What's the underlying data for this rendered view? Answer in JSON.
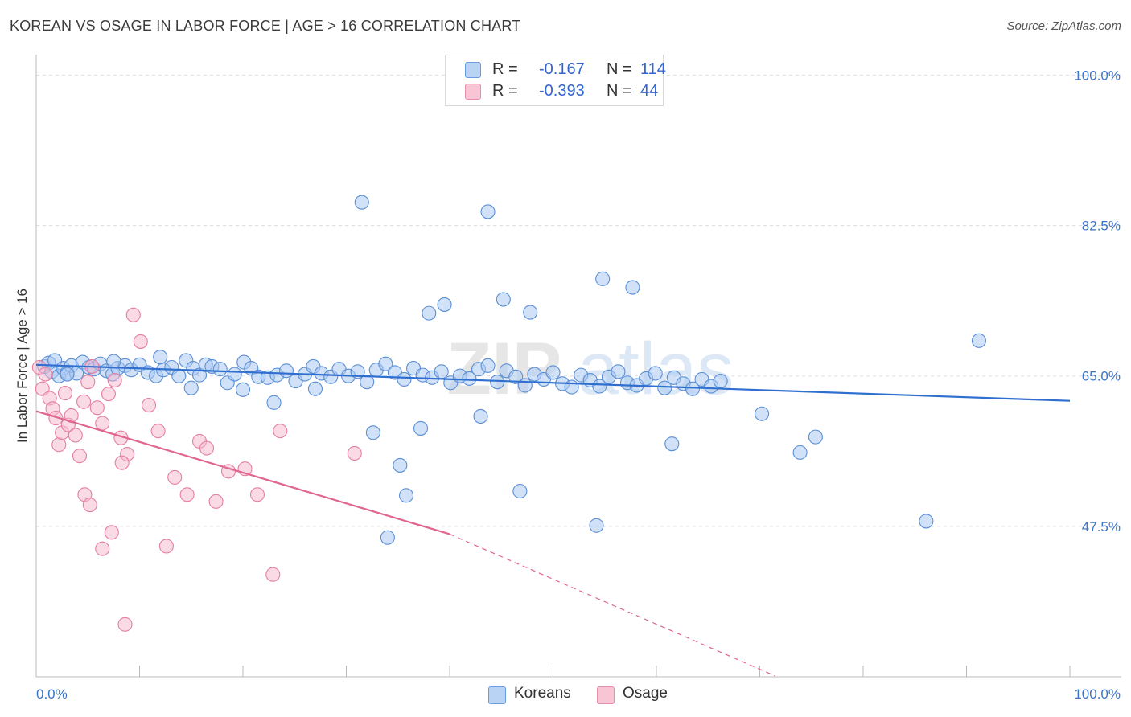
{
  "title": "KOREAN VS OSAGE IN LABOR FORCE | AGE > 16 CORRELATION CHART",
  "source": "Source: ZipAtlas.com",
  "watermark": "ZIPatlas",
  "colors": {
    "koreans_fill": "#a9c8f2",
    "koreans_stroke": "#5b8fd6",
    "koreans_line": "#2f6fcf",
    "osage_fill": "#f6b8cb",
    "osage_stroke": "#e47fa0",
    "osage_line": "#e06690",
    "tick_label": "#3b74c8",
    "grid": "#dddddd"
  },
  "legend_top": {
    "rows": [
      {
        "r_label": "R =",
        "r_value": "-0.167",
        "n_label": "N =",
        "n_value": "114"
      },
      {
        "r_label": "R =",
        "r_value": "-0.393",
        "n_label": "N =",
        "n_value": "44"
      }
    ]
  },
  "legend_bottom": {
    "items": [
      "Koreans",
      "Osage"
    ]
  },
  "chart_data": {
    "type": "scatter",
    "xlabel": "",
    "ylabel": "In Labor Force | Age > 16",
    "xlim": [
      0,
      100
    ],
    "ylim": [
      30,
      102
    ],
    "x_tick_labels": [
      "0.0%",
      "100.0%"
    ],
    "y_ticks": [
      47.5,
      65.0,
      82.5,
      100.0
    ],
    "y_tick_labels": [
      "47.5%",
      "65.0%",
      "82.5%",
      "100.0%"
    ],
    "grid": true,
    "legend_position": "top-center",
    "series": [
      {
        "name": "Koreans",
        "r": -0.167,
        "n": 114,
        "trend": {
          "x": [
            0,
            100
          ],
          "y": [
            66.3,
            62.1
          ]
        },
        "points": [
          [
            0.8,
            66.1
          ],
          [
            1.2,
            66.5
          ],
          [
            1.5,
            65.5
          ],
          [
            1.8,
            66.8
          ],
          [
            2.2,
            65.0
          ],
          [
            2.6,
            65.9
          ],
          [
            3.0,
            65.4
          ],
          [
            3.4,
            66.2
          ],
          [
            3.9,
            65.3
          ],
          [
            4.5,
            66.6
          ],
          [
            5.1,
            66.0
          ],
          [
            5.6,
            65.8
          ],
          [
            6.2,
            66.4
          ],
          [
            6.8,
            65.6
          ],
          [
            7.4,
            65.2
          ],
          [
            7.9,
            65.9
          ],
          [
            8.6,
            66.2
          ],
          [
            9.2,
            65.7
          ],
          [
            10.0,
            66.3
          ],
          [
            10.8,
            65.4
          ],
          [
            11.6,
            65.0
          ],
          [
            12.3,
            65.7
          ],
          [
            13.1,
            66.0
          ],
          [
            13.8,
            65.0
          ],
          [
            14.5,
            66.8
          ],
          [
            15.2,
            65.9
          ],
          [
            15.8,
            65.1
          ],
          [
            16.4,
            66.3
          ],
          [
            17.0,
            66.1
          ],
          [
            17.8,
            65.8
          ],
          [
            18.5,
            64.2
          ],
          [
            19.2,
            65.2
          ],
          [
            20.1,
            66.6
          ],
          [
            20.8,
            65.9
          ],
          [
            21.5,
            64.9
          ],
          [
            22.4,
            64.8
          ],
          [
            23.3,
            65.1
          ],
          [
            24.2,
            65.6
          ],
          [
            25.1,
            64.4
          ],
          [
            26.0,
            65.2
          ],
          [
            26.8,
            66.1
          ],
          [
            27.6,
            65.3
          ],
          [
            28.5,
            64.9
          ],
          [
            29.3,
            65.8
          ],
          [
            30.2,
            65.0
          ],
          [
            31.1,
            65.5
          ],
          [
            32.0,
            64.3
          ],
          [
            32.9,
            65.7
          ],
          [
            33.8,
            66.4
          ],
          [
            34.7,
            65.4
          ],
          [
            35.6,
            64.6
          ],
          [
            36.5,
            65.9
          ],
          [
            37.4,
            65.1
          ],
          [
            38.3,
            64.8
          ],
          [
            39.2,
            65.5
          ],
          [
            40.1,
            64.2
          ],
          [
            41.0,
            65.0
          ],
          [
            41.9,
            64.7
          ],
          [
            42.8,
            65.8
          ],
          [
            43.7,
            66.2
          ],
          [
            44.6,
            64.3
          ],
          [
            45.5,
            65.6
          ],
          [
            46.4,
            64.9
          ],
          [
            47.3,
            63.9
          ],
          [
            48.2,
            65.2
          ],
          [
            49.1,
            64.6
          ],
          [
            50.0,
            65.4
          ],
          [
            50.9,
            64.1
          ],
          [
            51.8,
            63.7
          ],
          [
            52.7,
            65.1
          ],
          [
            53.6,
            64.5
          ],
          [
            54.5,
            63.8
          ],
          [
            55.4,
            64.9
          ],
          [
            56.3,
            65.5
          ],
          [
            57.2,
            64.2
          ],
          [
            58.1,
            63.9
          ],
          [
            59.0,
            64.7
          ],
          [
            59.9,
            65.3
          ],
          [
            60.8,
            63.6
          ],
          [
            61.7,
            64.8
          ],
          [
            62.6,
            64.1
          ],
          [
            63.5,
            63.5
          ],
          [
            64.4,
            64.6
          ],
          [
            65.3,
            63.8
          ],
          [
            66.2,
            64.4
          ],
          [
            3.0,
            65.2
          ],
          [
            7.5,
            66.7
          ],
          [
            12.0,
            67.2
          ],
          [
            15.0,
            63.6
          ],
          [
            20.0,
            63.4
          ],
          [
            23.0,
            61.9
          ],
          [
            27.0,
            63.5
          ],
          [
            31.5,
            85.2
          ],
          [
            43.7,
            84.1
          ],
          [
            38.0,
            72.3
          ],
          [
            39.5,
            73.3
          ],
          [
            45.2,
            73.9
          ],
          [
            47.8,
            72.4
          ],
          [
            54.8,
            76.3
          ],
          [
            57.7,
            75.3
          ],
          [
            32.6,
            58.4
          ],
          [
            35.2,
            54.6
          ],
          [
            35.8,
            51.1
          ],
          [
            37.2,
            58.9
          ],
          [
            43.0,
            60.3
          ],
          [
            46.8,
            51.6
          ],
          [
            54.2,
            47.6
          ],
          [
            61.5,
            57.1
          ],
          [
            70.2,
            60.6
          ],
          [
            73.9,
            56.1
          ],
          [
            75.4,
            57.9
          ],
          [
            86.1,
            48.1
          ],
          [
            34.0,
            46.2
          ],
          [
            91.2,
            69.1
          ]
        ]
      },
      {
        "name": "Osage",
        "r": -0.393,
        "n": 44,
        "trend": {
          "x": [
            0,
            40
          ],
          "y": [
            60.9,
            46.6
          ]
        },
        "trend_dashed": {
          "x": [
            40,
            71.5
          ],
          "y": [
            46.6,
            30.1
          ]
        },
        "points": [
          [
            0.3,
            66.0
          ],
          [
            0.6,
            63.5
          ],
          [
            0.9,
            65.2
          ],
          [
            1.3,
            62.4
          ],
          [
            1.6,
            61.2
          ],
          [
            1.9,
            60.1
          ],
          [
            2.2,
            57.0
          ],
          [
            2.5,
            58.4
          ],
          [
            2.8,
            63.0
          ],
          [
            3.1,
            59.3
          ],
          [
            3.4,
            60.4
          ],
          [
            3.8,
            58.1
          ],
          [
            4.2,
            55.7
          ],
          [
            4.6,
            62.0
          ],
          [
            5.0,
            64.3
          ],
          [
            5.4,
            66.1
          ],
          [
            5.9,
            61.3
          ],
          [
            6.4,
            59.5
          ],
          [
            7.0,
            62.9
          ],
          [
            7.6,
            64.5
          ],
          [
            8.2,
            57.8
          ],
          [
            8.8,
            55.9
          ],
          [
            9.4,
            72.1
          ],
          [
            10.1,
            69.0
          ],
          [
            10.9,
            61.6
          ],
          [
            11.8,
            58.6
          ],
          [
            12.6,
            45.2
          ],
          [
            13.4,
            53.2
          ],
          [
            14.6,
            51.2
          ],
          [
            15.8,
            57.4
          ],
          [
            16.5,
            56.6
          ],
          [
            17.4,
            50.4
          ],
          [
            18.6,
            53.9
          ],
          [
            20.2,
            54.2
          ],
          [
            21.4,
            51.2
          ],
          [
            22.9,
            41.9
          ],
          [
            23.6,
            58.6
          ],
          [
            30.8,
            56.0
          ],
          [
            6.4,
            44.9
          ],
          [
            8.3,
            54.9
          ],
          [
            4.7,
            51.2
          ],
          [
            7.3,
            46.8
          ],
          [
            8.6,
            36.1
          ],
          [
            5.2,
            50.0
          ]
        ]
      }
    ]
  }
}
